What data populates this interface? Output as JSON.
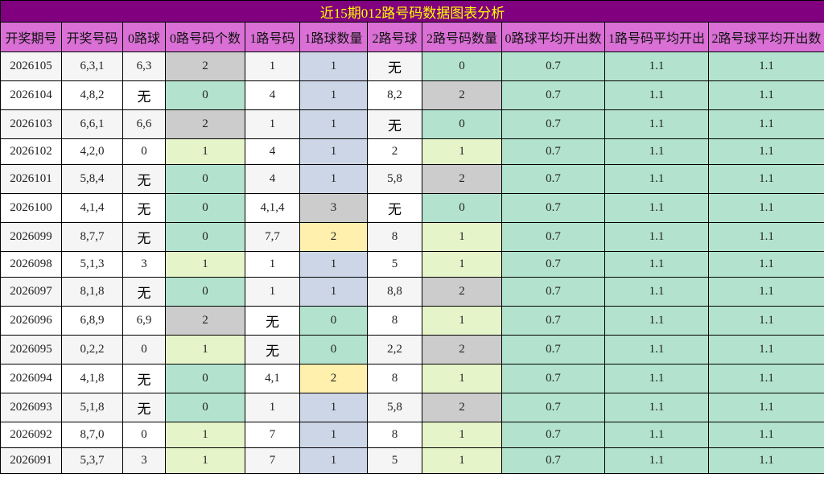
{
  "title": "近15期012路号码数据图表分析",
  "headers": [
    "开奖期号",
    "开奖号码",
    "0路球",
    "0路号码个数",
    "1路号码",
    "1路球数量",
    "2路号球",
    "2路号码数量",
    "0路球平均开出数",
    "1路号码平均开出",
    "2路号球平均开出数"
  ],
  "colors": {
    "g": "#cccccc",
    "m": "#b3e3cf",
    "l": "#e6f5c9",
    "b": "#ccd6e6",
    "y": "#fff1ad"
  },
  "rows": [
    {
      "cells": [
        "2026105",
        "6,3,1",
        "6,3",
        "2",
        "1",
        "1",
        "无",
        "0",
        "0.7",
        "1.1",
        "1.1"
      ],
      "colors": [
        "g",
        "b",
        "m"
      ]
    },
    {
      "cells": [
        "2026104",
        "4,8,2",
        "无",
        "0",
        "4",
        "1",
        "8,2",
        "2",
        "0.7",
        "1.1",
        "1.1"
      ],
      "colors": [
        "m",
        "b",
        "g"
      ]
    },
    {
      "cells": [
        "2026103",
        "6,6,1",
        "6,6",
        "2",
        "1",
        "1",
        "无",
        "0",
        "0.7",
        "1.1",
        "1.1"
      ],
      "colors": [
        "g",
        "b",
        "m"
      ]
    },
    {
      "cells": [
        "2026102",
        "4,2,0",
        "0",
        "1",
        "4",
        "1",
        "2",
        "1",
        "0.7",
        "1.1",
        "1.1"
      ],
      "colors": [
        "l",
        "b",
        "l"
      ]
    },
    {
      "cells": [
        "2026101",
        "5,8,4",
        "无",
        "0",
        "4",
        "1",
        "5,8",
        "2",
        "0.7",
        "1.1",
        "1.1"
      ],
      "colors": [
        "m",
        "b",
        "g"
      ]
    },
    {
      "cells": [
        "2026100",
        "4,1,4",
        "无",
        "0",
        "4,1,4",
        "3",
        "无",
        "0",
        "0.7",
        "1.1",
        "1.1"
      ],
      "colors": [
        "m",
        "g",
        "m"
      ]
    },
    {
      "cells": [
        "2026099",
        "8,7,7",
        "无",
        "0",
        "7,7",
        "2",
        "8",
        "1",
        "0.7",
        "1.1",
        "1.1"
      ],
      "colors": [
        "m",
        "y",
        "l"
      ]
    },
    {
      "cells": [
        "2026098",
        "5,1,3",
        "3",
        "1",
        "1",
        "1",
        "5",
        "1",
        "0.7",
        "1.1",
        "1.1"
      ],
      "colors": [
        "l",
        "b",
        "l"
      ]
    },
    {
      "cells": [
        "2026097",
        "8,1,8",
        "无",
        "0",
        "1",
        "1",
        "8,8",
        "2",
        "0.7",
        "1.1",
        "1.1"
      ],
      "colors": [
        "m",
        "b",
        "g"
      ]
    },
    {
      "cells": [
        "2026096",
        "6,8,9",
        "6,9",
        "2",
        "无",
        "0",
        "8",
        "1",
        "0.7",
        "1.1",
        "1.1"
      ],
      "colors": [
        "g",
        "m",
        "l"
      ]
    },
    {
      "cells": [
        "2026095",
        "0,2,2",
        "0",
        "1",
        "无",
        "0",
        "2,2",
        "2",
        "0.7",
        "1.1",
        "1.1"
      ],
      "colors": [
        "l",
        "m",
        "g"
      ]
    },
    {
      "cells": [
        "2026094",
        "4,1,8",
        "无",
        "0",
        "4,1",
        "2",
        "8",
        "1",
        "0.7",
        "1.1",
        "1.1"
      ],
      "colors": [
        "m",
        "y",
        "l"
      ]
    },
    {
      "cells": [
        "2026093",
        "5,1,8",
        "无",
        "0",
        "1",
        "1",
        "5,8",
        "2",
        "0.7",
        "1.1",
        "1.1"
      ],
      "colors": [
        "m",
        "b",
        "g"
      ]
    },
    {
      "cells": [
        "2026092",
        "8,7,0",
        "0",
        "1",
        "7",
        "1",
        "8",
        "1",
        "0.7",
        "1.1",
        "1.1"
      ],
      "colors": [
        "l",
        "b",
        "l"
      ]
    },
    {
      "cells": [
        "2026091",
        "5,3,7",
        "3",
        "1",
        "7",
        "1",
        "5",
        "1",
        "0.7",
        "1.1",
        "1.1"
      ],
      "colors": [
        "l",
        "b",
        "l"
      ]
    }
  ]
}
